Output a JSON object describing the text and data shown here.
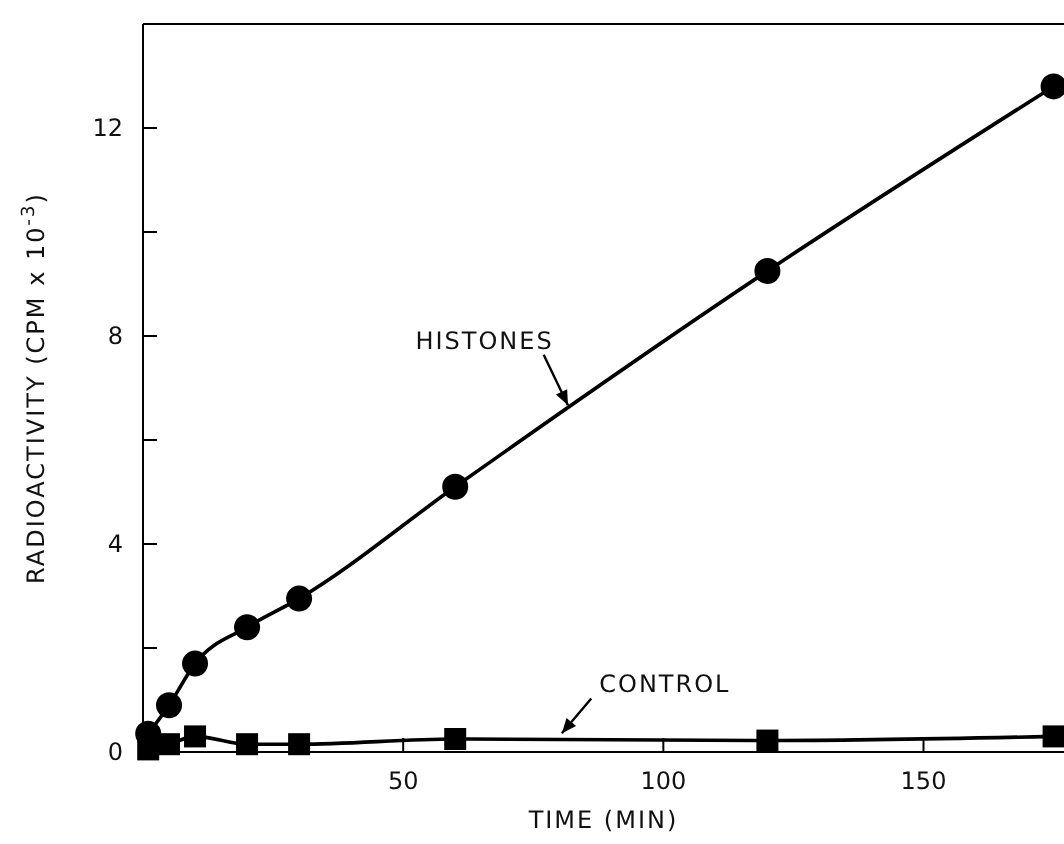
{
  "chart_data": {
    "type": "line",
    "xlabel": "TIME (MIN)",
    "ylabel": "RADIOACTIVITY (CPM x 10$^{-3}$)",
    "xlim": [
      0,
      177
    ],
    "xticks": [
      50,
      100,
      150
    ],
    "ylim": [
      0,
      14
    ],
    "yticks": [
      0,
      {
        "value": 2,
        "label": null
      },
      4,
      {
        "value": 6,
        "label": null
      },
      8,
      {
        "value": 10,
        "label": null
      },
      12
    ],
    "grid": false,
    "line_style": "solid",
    "series": [
      {
        "x": [
          1,
          5,
          10,
          20,
          30,
          60,
          120,
          175
        ],
        "values": [
          0.35,
          0.9,
          1.7,
          2.4,
          2.95,
          5.1,
          9.25,
          12.8
        ],
        "color": "#000000",
        "marker": "circle"
      },
      {
        "x": [
          1,
          5,
          10,
          20,
          30,
          60,
          120,
          175
        ],
        "values": [
          0.05,
          0.15,
          0.3,
          0.15,
          0.15,
          0.25,
          0.22,
          0.3
        ],
        "color": "#000000",
        "marker": "square"
      }
    ],
    "annotations": [
      {
        "text": "HISTONES",
        "x": 82,
        "y": 6.6
      },
      {
        "text": "CONTROL",
        "x": 80,
        "y": 0.3
      }
    ]
  }
}
